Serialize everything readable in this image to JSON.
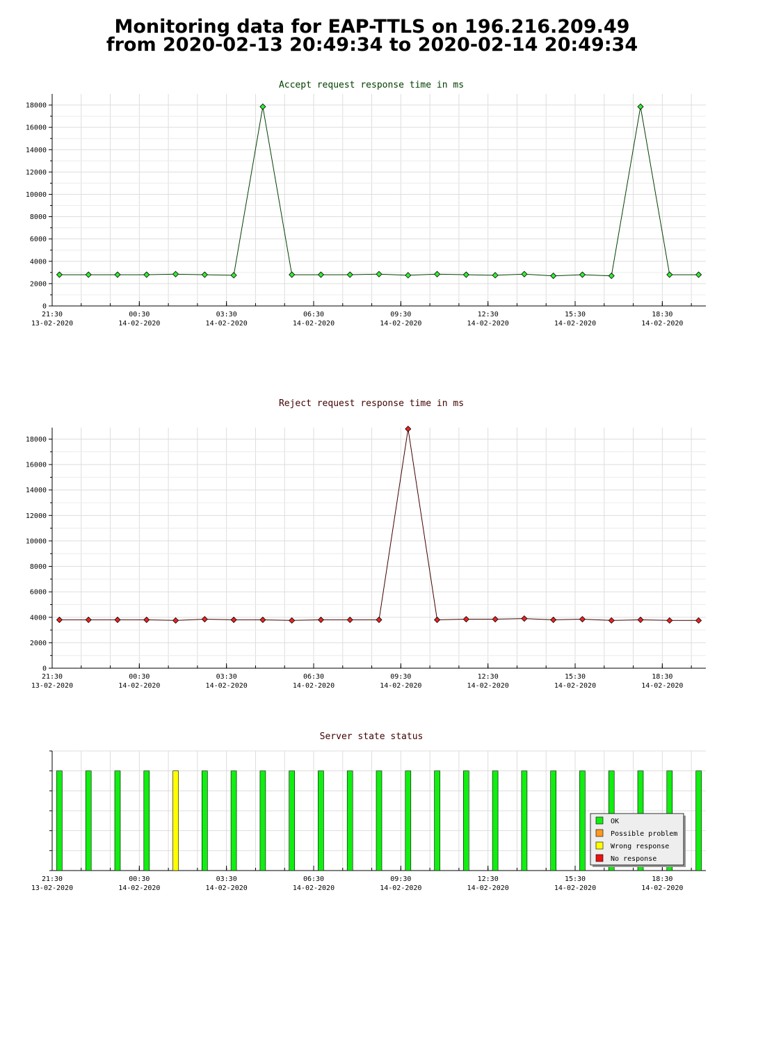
{
  "page": {
    "title_line1": "Monitoring data for EAP-TTLS on 196.216.209.49",
    "title_line2": "from 2020-02-13 20:49:34 to 2020-02-14 20:49:34"
  },
  "x_ticks": [
    {
      "time": "21:30",
      "date": "13-02-2020"
    },
    {
      "time": "00:30",
      "date": "14-02-2020"
    },
    {
      "time": "03:30",
      "date": "14-02-2020"
    },
    {
      "time": "06:30",
      "date": "14-02-2020"
    },
    {
      "time": "09:30",
      "date": "14-02-2020"
    },
    {
      "time": "12:30",
      "date": "14-02-2020"
    },
    {
      "time": "15:30",
      "date": "14-02-2020"
    },
    {
      "time": "18:30",
      "date": "14-02-2020"
    }
  ],
  "chart_data": [
    {
      "type": "line",
      "title": "Accept request response time in ms",
      "title_color": "#004000",
      "line_color": "#004000",
      "marker_color": "#33ee33",
      "x_start": "2020-02-13 21:30",
      "x_end": "2020-02-14 20:00",
      "x": [
        "2020-02-13 21:45",
        "2020-02-13 22:45",
        "2020-02-13 23:45",
        "2020-02-14 00:45",
        "2020-02-14 01:45",
        "2020-02-14 02:45",
        "2020-02-14 03:45",
        "2020-02-14 04:45",
        "2020-02-14 05:45",
        "2020-02-14 06:45",
        "2020-02-14 07:45",
        "2020-02-14 08:45",
        "2020-02-14 09:45",
        "2020-02-14 10:45",
        "2020-02-14 11:45",
        "2020-02-14 12:45",
        "2020-02-14 13:45",
        "2020-02-14 14:45",
        "2020-02-14 15:45",
        "2020-02-14 16:45",
        "2020-02-14 17:45",
        "2020-02-14 18:45",
        "2020-02-14 19:45"
      ],
      "y": [
        2800,
        2800,
        2800,
        2800,
        2850,
        2800,
        2750,
        17850,
        2800,
        2800,
        2800,
        2850,
        2750,
        2850,
        2800,
        2750,
        2850,
        2700,
        2800,
        2700,
        17850,
        2800,
        2800
      ],
      "ylim": [
        0,
        19000
      ],
      "y_ticks": [
        0,
        2000,
        4000,
        6000,
        8000,
        10000,
        12000,
        14000,
        16000,
        18000
      ],
      "grid": true
    },
    {
      "type": "line",
      "title": "Reject request response time in ms",
      "title_color": "#400000",
      "line_color": "#400000",
      "marker_color": "#ee2222",
      "x_start": "2020-02-13 21:30",
      "x_end": "2020-02-14 20:00",
      "x": [
        "2020-02-13 21:45",
        "2020-02-13 22:45",
        "2020-02-13 23:45",
        "2020-02-14 00:45",
        "2020-02-14 01:45",
        "2020-02-14 02:45",
        "2020-02-14 03:45",
        "2020-02-14 04:45",
        "2020-02-14 05:45",
        "2020-02-14 06:45",
        "2020-02-14 07:45",
        "2020-02-14 08:45",
        "2020-02-14 09:45",
        "2020-02-14 10:45",
        "2020-02-14 11:45",
        "2020-02-14 12:45",
        "2020-02-14 13:45",
        "2020-02-14 14:45",
        "2020-02-14 15:45",
        "2020-02-14 16:45",
        "2020-02-14 17:45",
        "2020-02-14 18:45",
        "2020-02-14 19:45"
      ],
      "y": [
        3800,
        3800,
        3800,
        3800,
        3750,
        3850,
        3800,
        3800,
        3750,
        3800,
        3800,
        3800,
        18800,
        3800,
        3850,
        3850,
        3900,
        3800,
        3850,
        3750,
        3800,
        3750,
        3750
      ],
      "ylim": [
        0,
        18900
      ],
      "y_ticks": [
        0,
        2000,
        4000,
        6000,
        8000,
        10000,
        12000,
        14000,
        16000,
        18000
      ],
      "grid": true
    },
    {
      "type": "bar",
      "title": "Server state status",
      "title_color": "#400000",
      "x_start": "2020-02-13 21:30",
      "x_end": "2020-02-14 20:00",
      "x": [
        "2020-02-13 21:45",
        "2020-02-13 22:45",
        "2020-02-13 23:45",
        "2020-02-14 00:45",
        "2020-02-14 01:45",
        "2020-02-14 02:45",
        "2020-02-14 03:45",
        "2020-02-14 04:45",
        "2020-02-14 05:45",
        "2020-02-14 06:45",
        "2020-02-14 07:45",
        "2020-02-14 08:45",
        "2020-02-14 09:45",
        "2020-02-14 10:45",
        "2020-02-14 11:45",
        "2020-02-14 12:45",
        "2020-02-14 13:45",
        "2020-02-14 14:45",
        "2020-02-14 15:45",
        "2020-02-14 16:45",
        "2020-02-14 17:45",
        "2020-02-14 18:45",
        "2020-02-14 19:45"
      ],
      "states": [
        "OK",
        "OK",
        "OK",
        "OK",
        "Wrong response",
        "OK",
        "OK",
        "OK",
        "OK",
        "OK",
        "OK",
        "OK",
        "OK",
        "OK",
        "OK",
        "OK",
        "OK",
        "OK",
        "OK",
        "OK",
        "OK",
        "OK",
        "OK"
      ],
      "value": 1,
      "ylim": [
        0,
        1.2
      ],
      "legend_position": "bottom-right",
      "legend": [
        {
          "label": "OK",
          "color": "#11ee11"
        },
        {
          "label": "Possible problem",
          "color": "#ff9922"
        },
        {
          "label": "Wrong response",
          "color": "#ffff00"
        },
        {
          "label": "No response",
          "color": "#ee1111"
        }
      ]
    }
  ]
}
